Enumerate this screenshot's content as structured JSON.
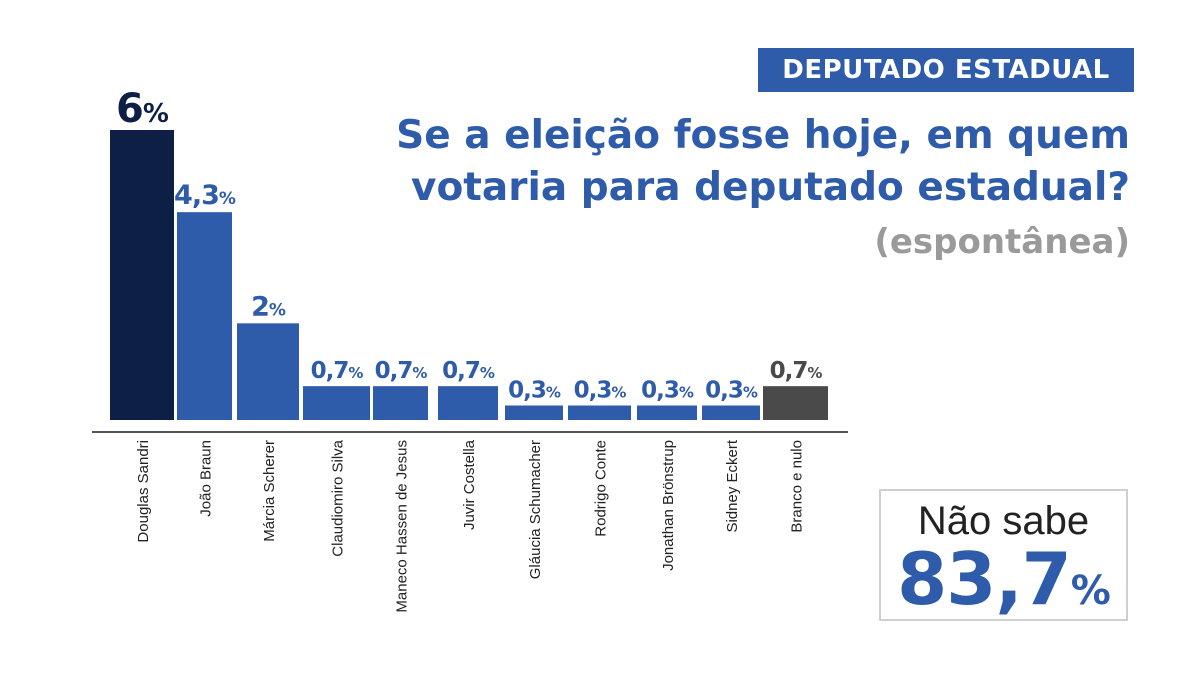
{
  "header": {
    "badge": "DEPUTADO ESTADUAL",
    "question": "Se a eleição fosse hoje, em quem votaria para deputado estadual?",
    "subtitle": "(espontânea)"
  },
  "colors": {
    "accent": "#2e5caa",
    "leader": "#0d1f45",
    "other": "#4a4a4a",
    "axis": "#555555"
  },
  "nao_sabe": {
    "label": "Não sabe",
    "value": "83,7",
    "unit": "%"
  },
  "chart_data": {
    "type": "bar",
    "categories": [
      "Douglas Sandri",
      "João Braun",
      "Márcia Scherer",
      "Claudiomiro Silva",
      "Maneco Hassen de Jesus",
      "Juvir Costella",
      "Gláucia Schumacher",
      "Rodrigo Conte",
      "Jonathan Brönstrup",
      "Sidney Eckert",
      "Branco e nulo"
    ],
    "values": [
      6,
      4.3,
      2,
      0.7,
      0.7,
      0.7,
      0.3,
      0.3,
      0.3,
      0.3,
      0.7
    ],
    "value_labels": [
      "6",
      "4,3",
      "2",
      "0,7",
      "0,7",
      "0,7",
      "0,3",
      "0,3",
      "0,3",
      "0,3",
      "0,7"
    ],
    "unit": "%",
    "bar_colors": [
      "#0d1f45",
      "#2e5caa",
      "#2e5caa",
      "#2e5caa",
      "#2e5caa",
      "#2e5caa",
      "#2e5caa",
      "#2e5caa",
      "#2e5caa",
      "#2e5caa",
      "#4a4a4a"
    ],
    "label_colors": [
      "#0d1f45",
      "#2e5caa",
      "#2e5caa",
      "#2e5caa",
      "#2e5caa",
      "#2e5caa",
      "#2e5caa",
      "#2e5caa",
      "#2e5caa",
      "#2e5caa",
      "#4a4a4a"
    ],
    "ylim": [
      0,
      6
    ],
    "grid": false
  }
}
